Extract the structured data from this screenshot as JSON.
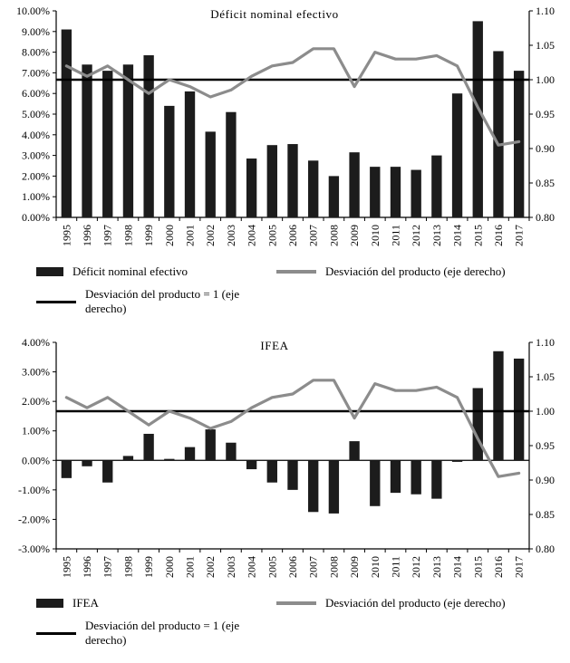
{
  "colors": {
    "bar": "#1c1c1c",
    "line": "#8c8c8c",
    "reference": "#000000",
    "axis": "#000000"
  },
  "chart_data": [
    {
      "type": "bar",
      "name": "deficit-nominal-efectivo",
      "title": "Déficit nominal efectivo",
      "categories": [
        "1995",
        "1996",
        "1997",
        "1998",
        "1999",
        "2000",
        "2001",
        "2002",
        "2003",
        "2004",
        "2005",
        "2006",
        "2007",
        "2008",
        "2009",
        "2010",
        "2011",
        "2012",
        "2013",
        "2014",
        "2015",
        "2016",
        "2017"
      ],
      "bar_series": {
        "name": "Déficit nominal efectivo",
        "color": "#1c1c1c",
        "axis": "left",
        "values_percent": [
          9.1,
          7.4,
          7.1,
          7.4,
          7.85,
          5.4,
          6.1,
          4.15,
          5.1,
          2.85,
          3.5,
          3.55,
          2.75,
          2.0,
          3.15,
          2.45,
          2.45,
          2.3,
          3.0,
          6.0,
          9.5,
          8.05,
          7.1
        ]
      },
      "line_series": {
        "name": "Desviación del producto (eje derecho)",
        "color": "#8c8c8c",
        "axis": "right",
        "values": [
          1.02,
          1.005,
          1.02,
          1.0,
          0.98,
          1.0,
          0.99,
          0.975,
          0.985,
          1.005,
          1.02,
          1.025,
          1.045,
          1.045,
          0.99,
          1.04,
          1.03,
          1.03,
          1.035,
          1.02,
          0.96,
          0.905,
          0.91
        ]
      },
      "ref_line": {
        "name": "Desviación del producto = 1 (eje derecho)",
        "color": "#000000",
        "axis": "right",
        "value": 1.0
      },
      "left_axis": {
        "min": 0,
        "max": 10,
        "step": 1,
        "format": "percent",
        "labels": [
          "0.00%",
          "1.00%",
          "2.00%",
          "3.00%",
          "4.00%",
          "5.00%",
          "6.00%",
          "7.00%",
          "8.00%",
          "9.00%",
          "10.00%"
        ]
      },
      "right_axis": {
        "min": 0.8,
        "max": 1.1,
        "step": 0.05,
        "format": "fixed2",
        "labels": [
          "0.80",
          "0.85",
          "0.90",
          "0.95",
          "1.00",
          "1.05",
          "1.10"
        ]
      },
      "grid": false,
      "legend_position": "bottom",
      "legend_rows": [
        [
          {
            "key": "deficit-nominal-efectivo",
            "swatch": "bar",
            "label": "Déficit nominal efectivo"
          },
          {
            "key": "desviacion-del-producto",
            "swatch": "line-gray",
            "label": "Desviación del producto (eje derecho)"
          }
        ],
        [
          {
            "key": "desviacion-del-producto-igual-1",
            "swatch": "line-black",
            "label": "Desviación del producto = 1 (eje derecho)"
          }
        ]
      ]
    },
    {
      "type": "bar",
      "name": "ifea",
      "title": "IFEA",
      "categories": [
        "1995",
        "1996",
        "1997",
        "1998",
        "1999",
        "2000",
        "2001",
        "2002",
        "2003",
        "2004",
        "2005",
        "2006",
        "2007",
        "2008",
        "2009",
        "2010",
        "2011",
        "2012",
        "2013",
        "2014",
        "2015",
        "2016",
        "2017"
      ],
      "bar_series": {
        "name": "IFEA",
        "color": "#1c1c1c",
        "axis": "left",
        "values_percent": [
          -0.6,
          -0.2,
          -0.75,
          0.15,
          0.9,
          0.05,
          0.45,
          1.05,
          0.6,
          -0.3,
          -0.75,
          -1.0,
          -1.75,
          -1.8,
          0.65,
          -1.55,
          -1.1,
          -1.15,
          -1.3,
          -0.05,
          2.45,
          3.7,
          3.45
        ]
      },
      "line_series": {
        "name": "Desviación del producto (eje derecho)",
        "color": "#8c8c8c",
        "axis": "right",
        "values": [
          1.02,
          1.005,
          1.02,
          1.0,
          0.98,
          1.0,
          0.99,
          0.975,
          0.985,
          1.005,
          1.02,
          1.025,
          1.045,
          1.045,
          0.99,
          1.04,
          1.03,
          1.03,
          1.035,
          1.02,
          0.96,
          0.905,
          0.91
        ]
      },
      "ref_line": {
        "name": "Desviación del producto = 1 (eje derecho)",
        "color": "#000000",
        "axis": "right",
        "value": 1.0
      },
      "left_axis": {
        "min": -3,
        "max": 4,
        "step": 1,
        "format": "percent",
        "labels": [
          "-3.00%",
          "-2.00%",
          "-1.00%",
          "0.00%",
          "1.00%",
          "2.00%",
          "3.00%",
          "4.00%"
        ]
      },
      "right_axis": {
        "min": 0.8,
        "max": 1.1,
        "step": 0.05,
        "format": "fixed2",
        "labels": [
          "0.80",
          "0.85",
          "0.90",
          "0.95",
          "1.00",
          "1.05",
          "1.10"
        ]
      },
      "grid": false,
      "legend_position": "bottom",
      "legend_rows": [
        [
          {
            "key": "ifea",
            "swatch": "bar",
            "label": "IFEA"
          },
          {
            "key": "desviacion-del-producto",
            "swatch": "line-gray",
            "label": "Desviación del producto (eje derecho)"
          }
        ],
        [
          {
            "key": "desviacion-del-producto-igual-1",
            "swatch": "line-black",
            "label": "Desviación del producto = 1 (eje derecho)"
          }
        ]
      ]
    }
  ]
}
